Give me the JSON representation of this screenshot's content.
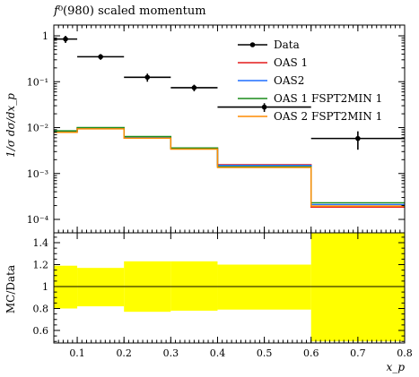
{
  "chart_data": [
    {
      "type": "line",
      "panel": "main",
      "title": "f⁰(980) scaled momentum",
      "xlabel": "x_p",
      "ylabel": "1/σ dσ/dx_p",
      "yscale": "log",
      "xlim": [
        0.05,
        0.8
      ],
      "ylim": [
        0.0001,
        2
      ],
      "y_tick_labels": [
        "1",
        "10⁻¹",
        "10⁻²",
        "10⁻³",
        "10⁻⁴"
      ],
      "data": {
        "name": "Data",
        "x": [
          0.075,
          0.15,
          0.25,
          0.35,
          0.5,
          0.7
        ],
        "x_low": [
          0.05,
          0.1,
          0.2,
          0.3,
          0.4,
          0.6
        ],
        "x_high": [
          0.1,
          0.2,
          0.3,
          0.4,
          0.6,
          0.8
        ],
        "y": [
          0.85,
          0.35,
          0.125,
          0.074,
          0.028,
          0.0058
        ],
        "y_err": [
          0.15,
          0.05,
          0.025,
          0.012,
          0.006,
          0.0025
        ]
      },
      "bin_edges": [
        0.05,
        0.1,
        0.2,
        0.3,
        0.4,
        0.6,
        0.8
      ],
      "series": [
        {
          "name": "OAS 1",
          "color": "#e41a1c",
          "values": [
            0.0083,
            0.0098,
            0.0063,
            0.0036,
            0.00155,
            0.000185
          ]
        },
        {
          "name": "OAS2",
          "color": "#1f6fff",
          "values": [
            0.0081,
            0.0095,
            0.0061,
            0.0035,
            0.0015,
            0.00021
          ]
        },
        {
          "name": "OAS 1 FSPT2MIN 1",
          "color": "#1a8c1a",
          "values": [
            0.0085,
            0.01,
            0.0064,
            0.0036,
            0.0014,
            0.00023
          ]
        },
        {
          "name": "OAS 2 FSPT2MIN 1",
          "color": "#ff8c00",
          "values": [
            0.0079,
            0.0094,
            0.0059,
            0.0034,
            0.00135,
            0.000195
          ]
        }
      ],
      "legend_position": "top-right"
    },
    {
      "type": "line",
      "panel": "ratio",
      "ylabel": "MC/Data",
      "xlabel": "x_p",
      "xlim": [
        0.05,
        0.8
      ],
      "ylim": [
        0.5,
        1.5
      ],
      "x_tick_labels": [
        "0.1",
        "0.2",
        "0.3",
        "0.4",
        "0.5",
        "0.6",
        "0.7",
        "0.8"
      ],
      "y_tick_labels": [
        "0.6",
        "0.8",
        "1",
        "1.2",
        "1.4"
      ],
      "band_color": "#ffff00",
      "band_edges": [
        0.05,
        0.1,
        0.2,
        0.3,
        0.4,
        0.6,
        0.8
      ],
      "band_low": [
        0.8,
        0.82,
        0.77,
        0.78,
        0.79,
        0.5
      ],
      "band_high": [
        1.19,
        1.17,
        1.23,
        1.23,
        1.2,
        1.5
      ]
    }
  ]
}
